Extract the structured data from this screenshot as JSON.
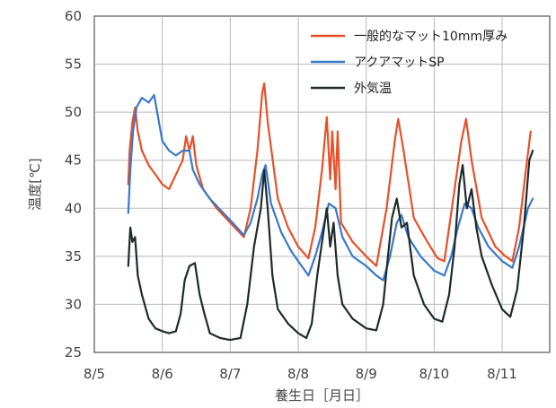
{
  "chart_data": {
    "type": "line",
    "title": "",
    "xlabel": "養生日［月日］",
    "ylabel": "温度[℃]",
    "xlim": [
      0,
      6.7
    ],
    "ylim": [
      25,
      60
    ],
    "x_ticks": [
      0,
      1,
      2,
      3,
      4,
      5,
      6
    ],
    "x_tick_labels": [
      "8/5",
      "8/6",
      "8/7",
      "8/8",
      "8/9",
      "8/10",
      "8/11"
    ],
    "y_ticks": [
      25,
      30,
      35,
      40,
      45,
      50,
      55,
      60
    ],
    "y_tick_labels": [
      "25",
      "30",
      "35",
      "40",
      "45",
      "50",
      "55",
      "60"
    ],
    "grid": true,
    "legend_position": "top-right",
    "series": [
      {
        "name": "一般的なマット10mm厚み",
        "color": "#e8502a",
        "points": [
          [
            0.5,
            42.5
          ],
          [
            0.52,
            46
          ],
          [
            0.56,
            49
          ],
          [
            0.6,
            50.5
          ],
          [
            0.64,
            48
          ],
          [
            0.7,
            46
          ],
          [
            0.8,
            44.5
          ],
          [
            0.9,
            43.5
          ],
          [
            1.0,
            42.5
          ],
          [
            1.1,
            42
          ],
          [
            1.2,
            43.5
          ],
          [
            1.3,
            45
          ],
          [
            1.35,
            47.5
          ],
          [
            1.4,
            46
          ],
          [
            1.45,
            47.5
          ],
          [
            1.5,
            44.5
          ],
          [
            1.6,
            42
          ],
          [
            1.8,
            40
          ],
          [
            2.0,
            38.5
          ],
          [
            2.2,
            37
          ],
          [
            2.3,
            40
          ],
          [
            2.4,
            46
          ],
          [
            2.47,
            52
          ],
          [
            2.5,
            53
          ],
          [
            2.55,
            49
          ],
          [
            2.7,
            41
          ],
          [
            2.85,
            38
          ],
          [
            3.0,
            36
          ],
          [
            3.15,
            34.8
          ],
          [
            3.25,
            38
          ],
          [
            3.35,
            44
          ],
          [
            3.42,
            49.5
          ],
          [
            3.47,
            43
          ],
          [
            3.5,
            48
          ],
          [
            3.55,
            42
          ],
          [
            3.58,
            48
          ],
          [
            3.63,
            38.5
          ],
          [
            3.8,
            36.5
          ],
          [
            4.0,
            35
          ],
          [
            4.15,
            34
          ],
          [
            4.3,
            40
          ],
          [
            4.42,
            47
          ],
          [
            4.47,
            49.3
          ],
          [
            4.55,
            46
          ],
          [
            4.7,
            39
          ],
          [
            4.9,
            36.5
          ],
          [
            5.05,
            34.8
          ],
          [
            5.15,
            34.5
          ],
          [
            5.3,
            42
          ],
          [
            5.4,
            47
          ],
          [
            5.47,
            49.3
          ],
          [
            5.55,
            45
          ],
          [
            5.7,
            39
          ],
          [
            5.9,
            36
          ],
          [
            6.05,
            35
          ],
          [
            6.15,
            34.5
          ],
          [
            6.25,
            38
          ],
          [
            6.35,
            44
          ],
          [
            6.42,
            48
          ]
        ]
      },
      {
        "name": "アクアマットSP",
        "color": "#3a78c8",
        "points": [
          [
            0.5,
            39.5
          ],
          [
            0.53,
            44
          ],
          [
            0.57,
            48
          ],
          [
            0.62,
            50.5
          ],
          [
            0.7,
            51.5
          ],
          [
            0.8,
            51
          ],
          [
            0.88,
            51.8
          ],
          [
            0.95,
            49
          ],
          [
            1.0,
            47
          ],
          [
            1.1,
            46
          ],
          [
            1.2,
            45.5
          ],
          [
            1.3,
            46
          ],
          [
            1.4,
            46
          ],
          [
            1.45,
            44
          ],
          [
            1.55,
            42.5
          ],
          [
            1.7,
            41
          ],
          [
            1.9,
            39.5
          ],
          [
            2.1,
            38
          ],
          [
            2.2,
            37.2
          ],
          [
            2.3,
            38.5
          ],
          [
            2.4,
            41
          ],
          [
            2.47,
            43.5
          ],
          [
            2.52,
            44.5
          ],
          [
            2.6,
            40.5
          ],
          [
            2.75,
            37.5
          ],
          [
            2.9,
            35.5
          ],
          [
            3.05,
            34
          ],
          [
            3.15,
            33
          ],
          [
            3.25,
            35
          ],
          [
            3.35,
            37.5
          ],
          [
            3.45,
            40.5
          ],
          [
            3.55,
            40
          ],
          [
            3.65,
            37
          ],
          [
            3.8,
            35
          ],
          [
            4.0,
            34
          ],
          [
            4.15,
            33
          ],
          [
            4.25,
            32.5
          ],
          [
            4.35,
            35
          ],
          [
            4.45,
            38.5
          ],
          [
            4.52,
            39.3
          ],
          [
            4.62,
            37
          ],
          [
            4.8,
            35
          ],
          [
            5.0,
            33.5
          ],
          [
            5.15,
            33
          ],
          [
            5.25,
            35
          ],
          [
            5.35,
            38
          ],
          [
            5.45,
            40.5
          ],
          [
            5.55,
            40
          ],
          [
            5.65,
            38
          ],
          [
            5.8,
            36
          ],
          [
            6.0,
            34.5
          ],
          [
            6.15,
            33.8
          ],
          [
            6.25,
            36
          ],
          [
            6.38,
            40
          ],
          [
            6.45,
            41
          ]
        ]
      },
      {
        "name": "外気温",
        "color": "#1f2a2a",
        "points": [
          [
            0.5,
            34
          ],
          [
            0.53,
            38
          ],
          [
            0.56,
            36.5
          ],
          [
            0.6,
            37
          ],
          [
            0.64,
            33
          ],
          [
            0.7,
            31
          ],
          [
            0.8,
            28.5
          ],
          [
            0.9,
            27.5
          ],
          [
            1.0,
            27.2
          ],
          [
            1.1,
            27
          ],
          [
            1.2,
            27.2
          ],
          [
            1.27,
            29
          ],
          [
            1.33,
            32.5
          ],
          [
            1.4,
            34
          ],
          [
            1.48,
            34.3
          ],
          [
            1.55,
            31
          ],
          [
            1.62,
            29
          ],
          [
            1.7,
            27
          ],
          [
            1.85,
            26.5
          ],
          [
            2.0,
            26.3
          ],
          [
            2.15,
            26.5
          ],
          [
            2.25,
            30
          ],
          [
            2.35,
            36
          ],
          [
            2.45,
            40
          ],
          [
            2.5,
            44
          ],
          [
            2.55,
            40
          ],
          [
            2.62,
            33
          ],
          [
            2.7,
            29.5
          ],
          [
            2.85,
            28
          ],
          [
            3.0,
            27
          ],
          [
            3.12,
            26.5
          ],
          [
            3.2,
            28
          ],
          [
            3.28,
            33
          ],
          [
            3.36,
            37
          ],
          [
            3.42,
            40
          ],
          [
            3.47,
            36
          ],
          [
            3.52,
            38.5
          ],
          [
            3.58,
            33
          ],
          [
            3.65,
            30
          ],
          [
            3.8,
            28.5
          ],
          [
            4.0,
            27.5
          ],
          [
            4.15,
            27.3
          ],
          [
            4.25,
            30
          ],
          [
            4.32,
            35
          ],
          [
            4.38,
            39
          ],
          [
            4.45,
            41
          ],
          [
            4.52,
            38
          ],
          [
            4.6,
            38.5
          ],
          [
            4.7,
            33
          ],
          [
            4.85,
            30
          ],
          [
            5.0,
            28.5
          ],
          [
            5.12,
            28.2
          ],
          [
            5.22,
            31
          ],
          [
            5.3,
            36
          ],
          [
            5.37,
            42.5
          ],
          [
            5.42,
            44.5
          ],
          [
            5.48,
            40
          ],
          [
            5.55,
            42
          ],
          [
            5.62,
            38
          ],
          [
            5.7,
            35
          ],
          [
            5.85,
            32
          ],
          [
            6.0,
            29.5
          ],
          [
            6.12,
            28.7
          ],
          [
            6.22,
            31.5
          ],
          [
            6.32,
            38
          ],
          [
            6.4,
            45
          ],
          [
            6.45,
            46
          ]
        ]
      }
    ]
  }
}
